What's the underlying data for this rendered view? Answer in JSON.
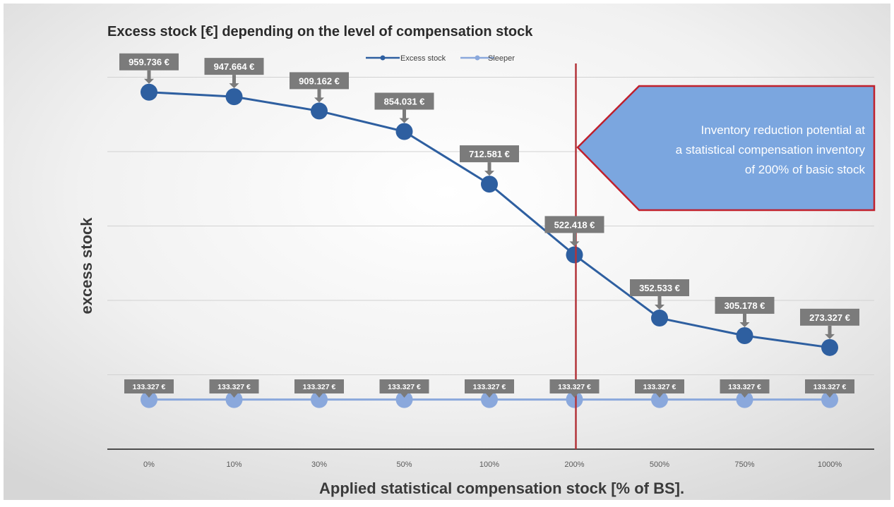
{
  "chart_data": {
    "type": "line",
    "title": "Excess stock [€] depending on the level of compensation stock",
    "xlabel": "Applied statistical compensation stock [% of BS].",
    "ylabel": "excess stock",
    "categories": [
      "0%",
      "10%",
      "30%",
      "50%",
      "100%",
      "200%",
      "500%",
      "750%",
      "1000%"
    ],
    "ylim": [
      0,
      1200000
    ],
    "grid": true,
    "legend_position": "top",
    "series": [
      {
        "name": "Excess stock",
        "color": "#2e5fa0",
        "values": [
          959736,
          947664,
          909162,
          854031,
          712581,
          522418,
          352533,
          305178,
          273327
        ],
        "labels": [
          "959.736 €",
          "947.664 €",
          "909.162 €",
          "854.031 €",
          "712.581 €",
          "522.418 €",
          "352.533 €",
          "305.178 €",
          "273.327 €"
        ]
      },
      {
        "name": "Sleeper",
        "color": "#8aa8dc",
        "values": [
          133327,
          133327,
          133327,
          133327,
          133327,
          133327,
          133327,
          133327,
          133327
        ],
        "labels": [
          "133.327 €",
          "133.327 €",
          "133.327 €",
          "133.327 €",
          "133.327 €",
          "133.327 €",
          "133.327 €",
          "133.327 €",
          "133.327 €"
        ]
      }
    ],
    "annotations": {
      "vertical_line_at": "200%",
      "vertical_line_color": "#b3343a",
      "callout_text": [
        "Inventory reduction potential at",
        "a statistical compensation inventory",
        "of 200% of basic stock"
      ],
      "callout_fill": "#7ba6df",
      "callout_border": "#c0212d"
    },
    "label_box_color": "#7b7b7b"
  }
}
